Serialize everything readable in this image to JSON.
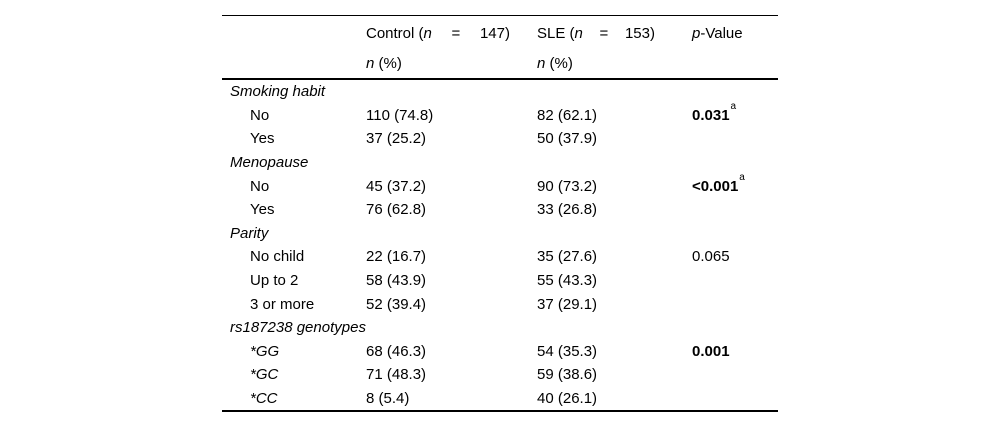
{
  "header": {
    "control": {
      "pre": "Control (",
      "n": "n",
      "eq": "=",
      "count": "147)"
    },
    "sle": {
      "pre": "SLE (",
      "n": "n",
      "eq": "=",
      "count": "153)"
    },
    "p": {
      "italic": "p",
      "suffix": "-Value"
    },
    "sub": {
      "n": "n",
      "pct": " (%)"
    }
  },
  "sections": [
    {
      "label": "Smoking habit",
      "rows": [
        {
          "label": "No",
          "control": "110 (74.8)",
          "sle": "82 (62.1)",
          "p": "0.031",
          "sup": "a"
        },
        {
          "label": "Yes",
          "control": "37 (25.2)",
          "sle": "50 (37.9)",
          "p": "",
          "sup": ""
        }
      ]
    },
    {
      "label": "Menopause",
      "rows": [
        {
          "label": "No",
          "control": "45 (37.2)",
          "sle": "90 (73.2)",
          "p": "<0.001",
          "sup": "a"
        },
        {
          "label": "Yes",
          "control": "76 (62.8)",
          "sle": "33 (26.8)",
          "p": "",
          "sup": ""
        }
      ]
    },
    {
      "label": "Parity",
      "rows": [
        {
          "label": "No child",
          "control": "22 (16.7)",
          "sle": "35 (27.6)",
          "p": "0.065",
          "sup": ""
        },
        {
          "label": "Up to 2",
          "control": "58 (43.9)",
          "sle": "55 (43.3)",
          "p": "",
          "sup": ""
        },
        {
          "label": "3 or more",
          "control": "52 (39.4)",
          "sle": "37 (29.1)",
          "p": "",
          "sup": ""
        }
      ]
    },
    {
      "label": "rs187238 genotypes",
      "rows": [
        {
          "label": "*GG",
          "control": "68 (46.3)",
          "sle": "54 (35.3)",
          "p": "0.001",
          "sup": ""
        },
        {
          "label": "*GC",
          "control": "71 (48.3)",
          "sle": "59 (38.6)",
          "p": "",
          "sup": ""
        },
        {
          "label": "*CC",
          "control": "8 (5.4)",
          "sle": "40 (26.1)",
          "p": "",
          "sup": ""
        }
      ]
    }
  ],
  "colors": {
    "text": "#000000",
    "rule": "#000000",
    "background": "#ffffff"
  }
}
